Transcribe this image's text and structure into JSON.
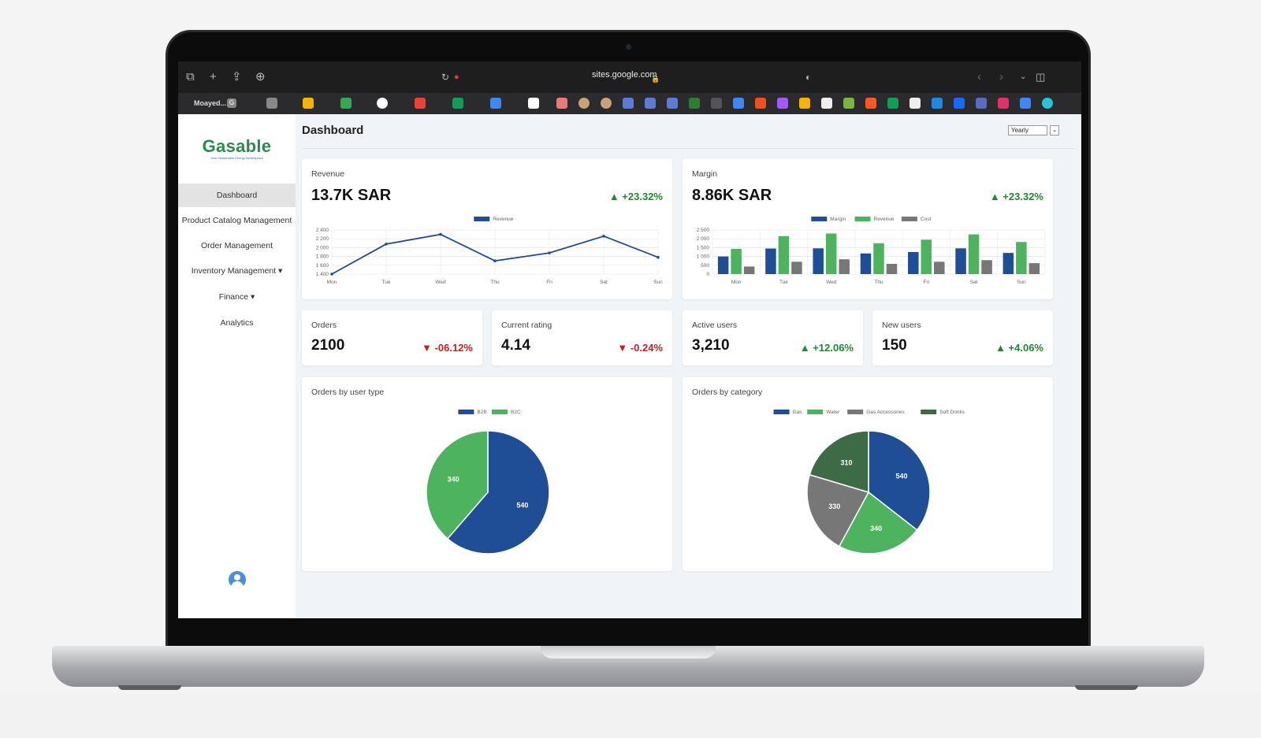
{
  "browser": {
    "url": "sites.google.com",
    "tab_label": "Moayed...",
    "tab_badge": "G"
  },
  "app": {
    "logo": "Gasable",
    "tagline": "Your Sustainable Energy Marketplace"
  },
  "sidebar": {
    "items": [
      {
        "label": "Dashboard",
        "active": true
      },
      {
        "label": "Product Catalog Management"
      },
      {
        "label": "Order Management"
      },
      {
        "label": "Inventory Management ▾"
      },
      {
        "label": "Finance ▾"
      },
      {
        "label": "Analytics"
      }
    ]
  },
  "header": {
    "title": "Dashboard",
    "period_selected": "Yearly"
  },
  "kpis": {
    "revenue": {
      "label": "Revenue",
      "value": "13.7K SAR",
      "delta": "▲ +23.32%"
    },
    "margin": {
      "label": "Margin",
      "value": "8.86K SAR",
      "delta": "▲ +23.32%"
    },
    "orders": {
      "label": "Orders",
      "value": "2100",
      "delta": "▼ -06.12%"
    },
    "rating": {
      "label": "Current rating",
      "value": "4.14",
      "delta": "▼ -0.24%"
    },
    "active_users": {
      "label": "Active users",
      "value": "3,210",
      "delta": "▲ +12.06%"
    },
    "new_users": {
      "label": "New users",
      "value": "150",
      "delta": "▲ +4.06%"
    },
    "orders_by_user_type": {
      "label": "Orders by user type"
    },
    "orders_by_category": {
      "label": "Orders by category"
    }
  },
  "colors": {
    "blue": "#1f4e96",
    "green": "#4db35e",
    "gray": "#777777",
    "dark_green": "#3c6b45",
    "up": "#1c8a2e",
    "down": "#d11a1a"
  },
  "chart_data": [
    {
      "type": "line",
      "title": "",
      "categories": [
        "Mon",
        "Tue",
        "Wed",
        "Thu",
        "Fri",
        "Sat",
        "Sun"
      ],
      "series": [
        {
          "name": "Revenue",
          "values": [
            1400,
            2080,
            2300,
            1700,
            1880,
            2260,
            1780
          ]
        }
      ],
      "ylim": [
        1400,
        2400
      ],
      "yticks": [
        "1 400",
        "1 600",
        "1 800",
        "2 000",
        "2 200",
        "2 400"
      ],
      "grid": true,
      "legend": "top"
    },
    {
      "type": "bar",
      "title": "",
      "categories": [
        "Mon",
        "Tue",
        "Wed",
        "Thu",
        "Fri",
        "Sat",
        "Sun"
      ],
      "series": [
        {
          "name": "Margin",
          "values": [
            1000,
            1450,
            1460,
            1170,
            1250,
            1460,
            1200
          ]
        },
        {
          "name": "Revenue",
          "values": [
            1430,
            2150,
            2300,
            1750,
            1950,
            2250,
            1820
          ]
        },
        {
          "name": "Cost",
          "values": [
            430,
            700,
            840,
            580,
            700,
            790,
            620
          ]
        }
      ],
      "ylim": [
        0,
        2500
      ],
      "yticks": [
        "0",
        "500",
        "1 000",
        "1 500",
        "2 000",
        "2 500"
      ],
      "grid": true,
      "legend": "top"
    },
    {
      "type": "pie",
      "title": "",
      "categories": [
        "B2B",
        "B2C"
      ],
      "values": [
        540,
        340
      ],
      "legend": "top"
    },
    {
      "type": "pie",
      "title": "",
      "categories": [
        "Gas",
        "Water",
        "Gas Accessories",
        "Soft Drinks"
      ],
      "values": [
        540,
        340,
        330,
        310
      ],
      "legend": "top"
    }
  ]
}
